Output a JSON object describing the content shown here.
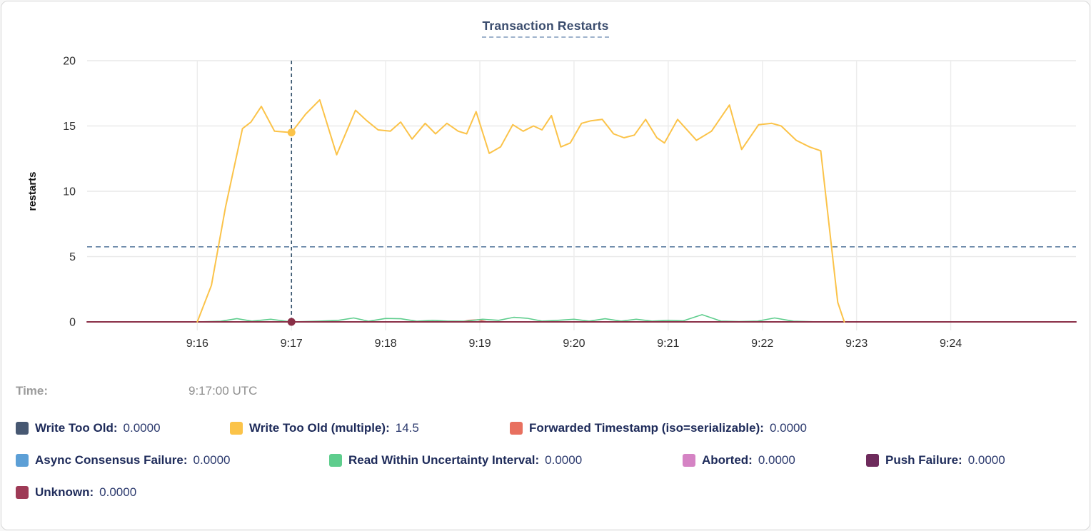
{
  "header": {
    "title": "Transaction Restarts"
  },
  "tooltip": {
    "time_label": "Time:",
    "time_value": "9:17:00 UTC"
  },
  "legend": {
    "rows": [
      [
        {
          "label": "Write Too Old:",
          "value": "0.0000",
          "color": "#475872"
        },
        {
          "label": "Write Too Old (multiple):",
          "value": "14.5",
          "color": "#fbc349"
        },
        {
          "label": "Forwarded Timestamp (iso=serializable):",
          "value": "0.0000",
          "color": "#e8705f"
        }
      ],
      [
        {
          "label": "Async Consensus Failure:",
          "value": "0.0000",
          "color": "#5c9fd6"
        },
        {
          "label": "Read Within Uncertainty Interval:",
          "value": "0.0000",
          "color": "#5ecd8d"
        },
        {
          "label": "Aborted:",
          "value": "0.0000",
          "color": "#d583c4"
        },
        {
          "label": "Push Failure:",
          "value": "0.0000",
          "color": "#6e2b5c"
        }
      ],
      [
        {
          "label": "Unknown:",
          "value": "0.0000",
          "color": "#9e3a56"
        }
      ]
    ]
  },
  "chart_data": {
    "type": "line",
    "title": "Transaction Restarts",
    "ylabel": "restarts",
    "xlabel": "",
    "ylim": [
      0,
      20
    ],
    "y_ticks": [
      0,
      5,
      10,
      15,
      20
    ],
    "x_domain": [
      14.83,
      25.33
    ],
    "x_ticks": [
      {
        "label": "9:16",
        "t": 16
      },
      {
        "label": "9:17",
        "t": 17
      },
      {
        "label": "9:18",
        "t": 18
      },
      {
        "label": "9:19",
        "t": 19
      },
      {
        "label": "9:20",
        "t": 20
      },
      {
        "label": "9:21",
        "t": 21
      },
      {
        "label": "9:22",
        "t": 22
      },
      {
        "label": "9:23",
        "t": 23
      },
      {
        "label": "9:24",
        "t": 24
      }
    ],
    "grid": true,
    "legend_position": "bottom",
    "hover": {
      "t": 17,
      "time": "9:17:00 UTC",
      "y_guide": 5.75,
      "dots": [
        {
          "series": "Write Too Old (multiple)",
          "v": 14.5
        },
        {
          "series": "Unknown",
          "v": 0
        }
      ]
    },
    "series": [
      {
        "name": "Write Too Old",
        "color": "#475872",
        "line_width": 1.5,
        "points": [
          [
            16,
            0
          ],
          [
            22.87,
            0
          ]
        ]
      },
      {
        "name": "Async Consensus Failure",
        "color": "#5c9fd6",
        "line_width": 1.5,
        "points": [
          [
            16,
            0
          ],
          [
            22.87,
            0
          ]
        ]
      },
      {
        "name": "Aborted",
        "color": "#d583c4",
        "line_width": 1.5,
        "points": [
          [
            16,
            0
          ],
          [
            22.87,
            0
          ]
        ]
      },
      {
        "name": "Push Failure",
        "color": "#6e2b5c",
        "line_width": 1.5,
        "points": [
          [
            16,
            0
          ],
          [
            22.87,
            0
          ]
        ]
      },
      {
        "name": "Forwarded Timestamp (iso=serializable)",
        "color": "#e8705f",
        "line_width": 1.6,
        "points": [
          [
            16,
            0
          ],
          [
            18.8,
            0
          ],
          [
            18.88,
            0.12
          ],
          [
            18.98,
            0.16
          ],
          [
            19.08,
            0
          ],
          [
            22.87,
            0
          ]
        ]
      },
      {
        "name": "Read Within Uncertainty Interval",
        "color": "#5ecd8d",
        "line_width": 1.6,
        "points": [
          [
            16,
            0
          ],
          [
            16.25,
            0.05
          ],
          [
            16.42,
            0.25
          ],
          [
            16.58,
            0.06
          ],
          [
            16.78,
            0.2
          ],
          [
            17,
            0
          ],
          [
            17.3,
            0.06
          ],
          [
            17.5,
            0.12
          ],
          [
            17.66,
            0.3
          ],
          [
            17.82,
            0.05
          ],
          [
            18,
            0.26
          ],
          [
            18.16,
            0.24
          ],
          [
            18.33,
            0.05
          ],
          [
            18.5,
            0.12
          ],
          [
            18.66,
            0.06
          ],
          [
            18.85,
            0.05
          ],
          [
            19.03,
            0.2
          ],
          [
            19.2,
            0.12
          ],
          [
            19.36,
            0.35
          ],
          [
            19.5,
            0.28
          ],
          [
            19.66,
            0.06
          ],
          [
            19.83,
            0.12
          ],
          [
            20,
            0.2
          ],
          [
            20.16,
            0.06
          ],
          [
            20.33,
            0.24
          ],
          [
            20.5,
            0.06
          ],
          [
            20.66,
            0.2
          ],
          [
            20.83,
            0.06
          ],
          [
            21,
            0.12
          ],
          [
            21.16,
            0.08
          ],
          [
            21.36,
            0.55
          ],
          [
            21.56,
            0.06
          ],
          [
            21.75,
            0.03
          ],
          [
            21.95,
            0.06
          ],
          [
            22.13,
            0.3
          ],
          [
            22.33,
            0.05
          ],
          [
            22.6,
            0
          ],
          [
            22.87,
            0
          ]
        ]
      },
      {
        "name": "Unknown",
        "color": "#8a2f47",
        "line_width": 2,
        "points": [
          [
            14.83,
            0
          ],
          [
            25.33,
            0
          ]
        ]
      },
      {
        "name": "Write Too Old (multiple)",
        "color": "#fbc349",
        "line_width": 2,
        "points": [
          [
            16,
            0
          ],
          [
            16.15,
            2.8
          ],
          [
            16.3,
            8.8
          ],
          [
            16.48,
            14.8
          ],
          [
            16.57,
            15.3
          ],
          [
            16.68,
            16.5
          ],
          [
            16.82,
            14.6
          ],
          [
            17,
            14.5
          ],
          [
            17.15,
            15.9
          ],
          [
            17.3,
            17
          ],
          [
            17.48,
            12.8
          ],
          [
            17.68,
            16.2
          ],
          [
            17.8,
            15.4
          ],
          [
            17.92,
            14.7
          ],
          [
            18.05,
            14.6
          ],
          [
            18.16,
            15.3
          ],
          [
            18.28,
            14
          ],
          [
            18.42,
            15.2
          ],
          [
            18.53,
            14.4
          ],
          [
            18.65,
            15.2
          ],
          [
            18.77,
            14.6
          ],
          [
            18.86,
            14.4
          ],
          [
            18.96,
            16.1
          ],
          [
            19.1,
            12.9
          ],
          [
            19.22,
            13.4
          ],
          [
            19.35,
            15.1
          ],
          [
            19.46,
            14.6
          ],
          [
            19.57,
            15
          ],
          [
            19.66,
            14.7
          ],
          [
            19.76,
            15.8
          ],
          [
            19.86,
            13.4
          ],
          [
            19.96,
            13.7
          ],
          [
            20.08,
            15.2
          ],
          [
            20.18,
            15.4
          ],
          [
            20.3,
            15.5
          ],
          [
            20.42,
            14.4
          ],
          [
            20.53,
            14.1
          ],
          [
            20.64,
            14.3
          ],
          [
            20.76,
            15.5
          ],
          [
            20.88,
            14.1
          ],
          [
            20.96,
            13.7
          ],
          [
            21.1,
            15.5
          ],
          [
            21.3,
            13.9
          ],
          [
            21.46,
            14.6
          ],
          [
            21.65,
            16.6
          ],
          [
            21.78,
            13.2
          ],
          [
            21.96,
            15.1
          ],
          [
            22.1,
            15.2
          ],
          [
            22.2,
            15
          ],
          [
            22.36,
            13.9
          ],
          [
            22.5,
            13.4
          ],
          [
            22.62,
            13.1
          ],
          [
            22.8,
            1.5
          ],
          [
            22.87,
            0
          ]
        ]
      }
    ]
  }
}
